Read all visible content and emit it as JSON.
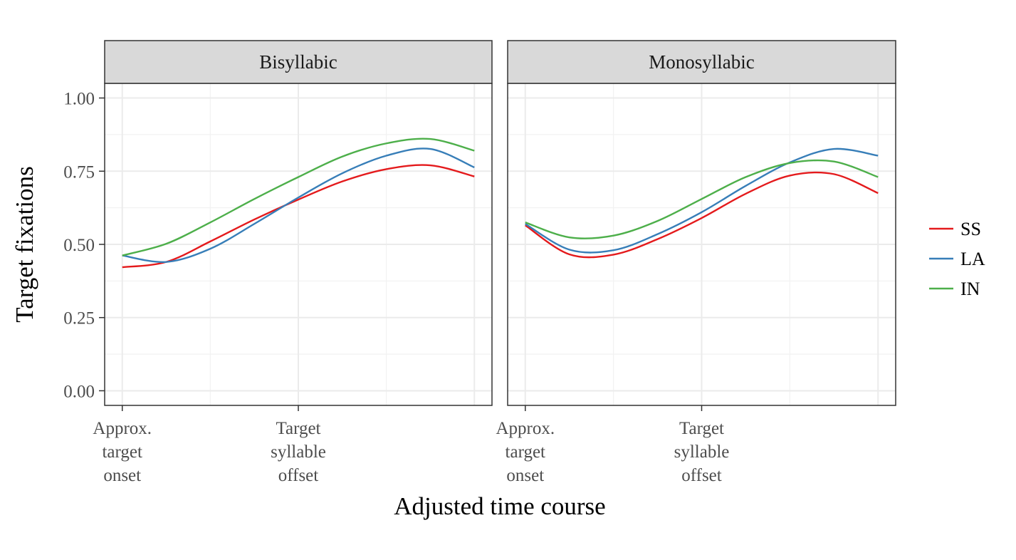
{
  "chart_data": {
    "type": "line",
    "xlabel": "Adjusted time course",
    "ylabel": "Target fixations",
    "ylim": [
      -0.05,
      1.05
    ],
    "xlim": [
      -0.1,
      2.1
    ],
    "y_ticks": [
      {
        "value": 0.0,
        "label": "0.00"
      },
      {
        "value": 0.25,
        "label": "0.25"
      },
      {
        "value": 0.5,
        "label": "0.50"
      },
      {
        "value": 0.75,
        "label": "0.75"
      },
      {
        "value": 1.0,
        "label": "1.00"
      }
    ],
    "x_ticks": [
      {
        "value": 0,
        "lines": [
          "Approx.",
          "target",
          "onset"
        ]
      },
      {
        "value": 1,
        "lines": [
          "Target",
          "syllable",
          "offset"
        ]
      }
    ],
    "grid": true,
    "legend_position": "right",
    "series_colors": {
      "SS": "#e41a1c",
      "LA": "#377eb8",
      "IN": "#4daf4a"
    },
    "legend": [
      "SS",
      "LA",
      "IN"
    ],
    "panels": [
      {
        "title": "Bisyllabic",
        "series": [
          {
            "name": "SS",
            "x": [
              0,
              0.25,
              0.5,
              0.75,
              1.0,
              1.25,
              1.5,
              1.75,
              2.0
            ],
            "values": [
              0.422,
              0.44,
              0.51,
              0.585,
              0.653,
              0.715,
              0.757,
              0.77,
              0.732
            ]
          },
          {
            "name": "LA",
            "x": [
              0,
              0.25,
              0.5,
              0.75,
              1.0,
              1.25,
              1.5,
              1.75,
              2.0
            ],
            "values": [
              0.462,
              0.44,
              0.485,
              0.57,
              0.66,
              0.743,
              0.803,
              0.826,
              0.763
            ]
          },
          {
            "name": "IN",
            "x": [
              0,
              0.25,
              0.5,
              0.75,
              1.0,
              1.25,
              1.5,
              1.75,
              2.0
            ],
            "values": [
              0.462,
              0.502,
              0.575,
              0.655,
              0.73,
              0.8,
              0.845,
              0.86,
              0.82
            ]
          }
        ]
      },
      {
        "title": "Monosyllabic",
        "series": [
          {
            "name": "SS",
            "x": [
              0,
              0.25,
              0.5,
              0.75,
              1.0,
              1.25,
              1.5,
              1.75,
              2.0
            ],
            "values": [
              0.565,
              0.466,
              0.465,
              0.518,
              0.59,
              0.673,
              0.735,
              0.74,
              0.675
            ]
          },
          {
            "name": "LA",
            "x": [
              0,
              0.25,
              0.5,
              0.75,
              1.0,
              1.25,
              1.5,
              1.75,
              2.0
            ],
            "values": [
              0.57,
              0.482,
              0.48,
              0.535,
              0.61,
              0.7,
              0.78,
              0.826,
              0.803
            ]
          },
          {
            "name": "IN",
            "x": [
              0,
              0.25,
              0.5,
              0.75,
              1.0,
              1.25,
              1.5,
              1.75,
              2.0
            ],
            "values": [
              0.575,
              0.524,
              0.53,
              0.58,
              0.655,
              0.73,
              0.778,
              0.783,
              0.73
            ]
          }
        ]
      }
    ]
  }
}
